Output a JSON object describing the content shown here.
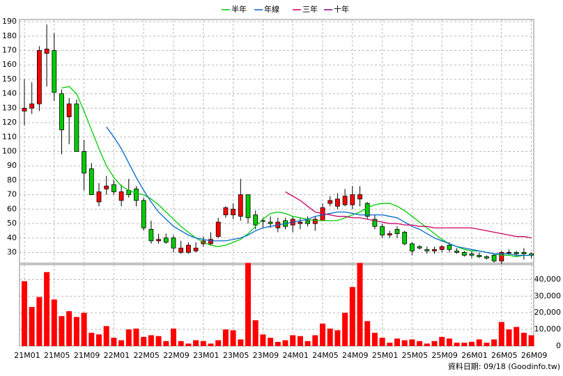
{
  "chart_data": {
    "type": "candlestick",
    "categories": [
      "21M01",
      null,
      null,
      null,
      "21M05",
      null,
      null,
      null,
      "21M09",
      null,
      null,
      null,
      "22M01",
      null,
      null,
      null,
      "22M05",
      null,
      null,
      null,
      "22M09",
      null,
      null,
      null,
      "23M01",
      null,
      null,
      null,
      "23M05",
      null,
      null,
      null,
      "23M09",
      null,
      null,
      null,
      "24M01",
      null,
      null,
      null,
      "24M05",
      null,
      null,
      null,
      "24M09",
      null,
      null,
      null,
      "25M01",
      null,
      null,
      null,
      "25M05",
      null,
      null,
      null,
      "25M09",
      null,
      null,
      null,
      "26M01",
      null,
      null,
      null,
      "26M05",
      null,
      null,
      null,
      "26M09"
    ],
    "open": [
      128,
      130,
      133,
      168,
      170,
      140,
      124,
      133,
      100,
      88,
      65,
      74,
      77,
      66,
      73,
      74,
      66,
      46,
      38,
      40,
      40,
      30,
      30,
      31,
      36,
      36,
      41,
      56,
      56,
      55,
      70,
      56,
      52,
      51,
      47,
      52,
      49,
      50,
      52,
      50,
      52,
      64,
      62,
      63,
      63,
      67,
      64,
      53,
      48,
      42,
      46,
      44,
      36,
      34,
      32,
      31,
      32,
      35,
      31,
      30,
      29,
      28,
      27,
      28,
      24,
      30,
      30,
      30,
      29
    ],
    "high": [
      150,
      148,
      173,
      188,
      182,
      143,
      137,
      136,
      108,
      92,
      78,
      83,
      80,
      77,
      81,
      76,
      68,
      52,
      43,
      43,
      42,
      38,
      37,
      37,
      41,
      44,
      54,
      62,
      64,
      81,
      70,
      59,
      54,
      55,
      54,
      54,
      55,
      54,
      55,
      55,
      64,
      69,
      71,
      74,
      76,
      76,
      65,
      56,
      50,
      45,
      48,
      45,
      37,
      35,
      34,
      34,
      35,
      37,
      33,
      31,
      31,
      30,
      28,
      29,
      31,
      32,
      31,
      33,
      30
    ],
    "low": [
      118,
      126,
      128,
      145,
      135,
      98,
      105,
      100,
      73,
      70,
      62,
      70,
      70,
      62,
      68,
      62,
      45,
      36,
      36,
      36,
      30,
      29,
      29,
      30,
      34,
      35,
      40,
      54,
      53,
      52,
      50,
      46,
      47,
      47,
      44,
      46,
      44,
      46,
      48,
      45,
      52,
      62,
      60,
      62,
      60,
      62,
      53,
      46,
      40,
      40,
      40,
      35,
      28,
      32,
      29,
      29,
      30,
      30,
      29,
      27,
      26,
      26,
      25,
      23,
      22,
      28,
      27,
      25,
      26
    ],
    "close": [
      130,
      133,
      170,
      171,
      141,
      115,
      133,
      100,
      85,
      70,
      72,
      76,
      72,
      72,
      70,
      66,
      47,
      38,
      39,
      37,
      33,
      33,
      35,
      33,
      38,
      39,
      51,
      61,
      60,
      70,
      54,
      49,
      52,
      50,
      51,
      48,
      53,
      51,
      50,
      53,
      61,
      66,
      67,
      69,
      70,
      70,
      55,
      48,
      42,
      43,
      43,
      36,
      31,
      33,
      31,
      32,
      34,
      32,
      30,
      28,
      28,
      27,
      26,
      24,
      30,
      30,
      29,
      29,
      28
    ],
    "volume": [
      39000,
      23500,
      29500,
      44500,
      28000,
      18000,
      21000,
      17500,
      20000,
      8000,
      7000,
      12000,
      5000,
      3500,
      10000,
      10500,
      5500,
      6500,
      6000,
      3000,
      10500,
      3000,
      1500,
      3500,
      3000,
      1500,
      3500,
      10000,
      9500,
      4000,
      50000,
      15500,
      7000,
      5000,
      2500,
      3500,
      6500,
      6000,
      3000,
      6500,
      13500,
      10500,
      9500,
      20000,
      35500,
      50000,
      15000,
      8000,
      5000,
      2000,
      4500,
      3500,
      4000,
      3000,
      1500,
      3000,
      5500,
      4500,
      2000,
      2000,
      2500,
      4000,
      2000,
      4000,
      14500,
      10000,
      11500,
      8000,
      6500
    ],
    "up_color": "#ff0000",
    "down_color": "#00cc00",
    "volume_color": "#ff0000",
    "series": [
      {
        "name": "半年",
        "color": "#00cc00",
        "values": [
          null,
          null,
          null,
          null,
          null,
          144,
          145,
          140,
          128,
          115,
          102,
          90,
          82,
          76,
          73,
          71,
          70,
          67,
          63,
          58,
          53,
          48,
          44,
          40,
          37,
          35,
          34,
          35,
          37,
          39,
          43,
          48,
          53,
          57,
          58,
          57,
          55,
          54,
          53,
          52,
          52,
          52,
          52,
          54,
          56,
          58,
          61,
          63,
          64,
          64,
          62,
          59,
          55,
          51,
          47,
          43,
          39,
          36,
          34,
          32,
          31,
          31,
          30,
          29,
          28,
          28,
          27,
          28,
          28
        ]
      },
      {
        "name": "年線",
        "color": "#0066cc",
        "values": [
          null,
          null,
          null,
          null,
          null,
          null,
          null,
          null,
          null,
          null,
          null,
          117,
          110,
          102,
          92,
          82,
          73,
          65,
          58,
          53,
          48,
          45,
          42,
          40,
          39,
          38,
          38,
          38,
          39,
          40,
          42,
          45,
          47,
          48,
          49,
          50,
          51,
          52,
          53,
          55,
          56,
          57,
          58,
          58,
          57,
          56,
          56,
          56,
          56,
          55,
          54,
          51,
          48,
          46,
          43,
          40,
          38,
          36,
          34,
          33,
          32,
          31,
          30,
          29,
          29,
          29,
          28,
          28,
          28
        ]
      },
      {
        "name": "三年",
        "color": "#cc0066",
        "values": [
          null,
          null,
          null,
          null,
          null,
          null,
          null,
          null,
          null,
          null,
          null,
          null,
          null,
          null,
          null,
          null,
          null,
          null,
          null,
          null,
          null,
          null,
          null,
          null,
          null,
          null,
          null,
          null,
          null,
          null,
          null,
          null,
          null,
          null,
          null,
          72,
          69,
          66,
          62,
          58,
          57,
          56,
          55,
          55,
          54,
          54,
          53,
          52,
          51,
          50,
          50,
          49,
          49,
          48,
          48,
          47,
          47,
          47,
          47,
          47,
          47,
          46,
          45,
          44,
          43,
          42,
          41,
          41,
          40
        ]
      },
      {
        "name": "十年",
        "color": "#800080",
        "values": [
          null,
          null,
          null,
          null,
          null,
          null,
          null,
          null,
          null,
          null,
          null,
          null,
          null,
          null,
          null,
          null,
          null,
          null,
          null,
          null,
          null,
          null,
          null,
          null,
          null,
          null,
          null,
          null,
          null,
          null,
          null,
          null,
          null,
          null,
          null,
          null,
          null,
          null,
          null,
          null,
          null,
          null,
          null,
          null,
          null,
          null,
          null,
          null,
          null,
          null,
          null,
          null,
          null,
          null,
          null,
          null,
          null,
          null,
          null,
          null,
          null,
          null,
          null,
          null,
          null,
          null,
          null,
          null,
          null
        ]
      }
    ],
    "ylim": [
      22.5,
      191.5
    ],
    "yticks": [
      30,
      40,
      50,
      60,
      70,
      80,
      90,
      100,
      110,
      120,
      130,
      140,
      150,
      160,
      170,
      180,
      190
    ],
    "volume_ylim": [
      0,
      49000
    ],
    "volume_yticks": [
      0,
      {
        "value": 10000,
        "label": "10,000"
      },
      {
        "value": 20000,
        "label": "20,000"
      },
      {
        "value": 30000,
        "label": "30,000"
      },
      {
        "value": 40000,
        "label": "40,000"
      }
    ],
    "grid": true,
    "source_note": "資料日期: 09/18 (Goodinfo.tw)"
  }
}
